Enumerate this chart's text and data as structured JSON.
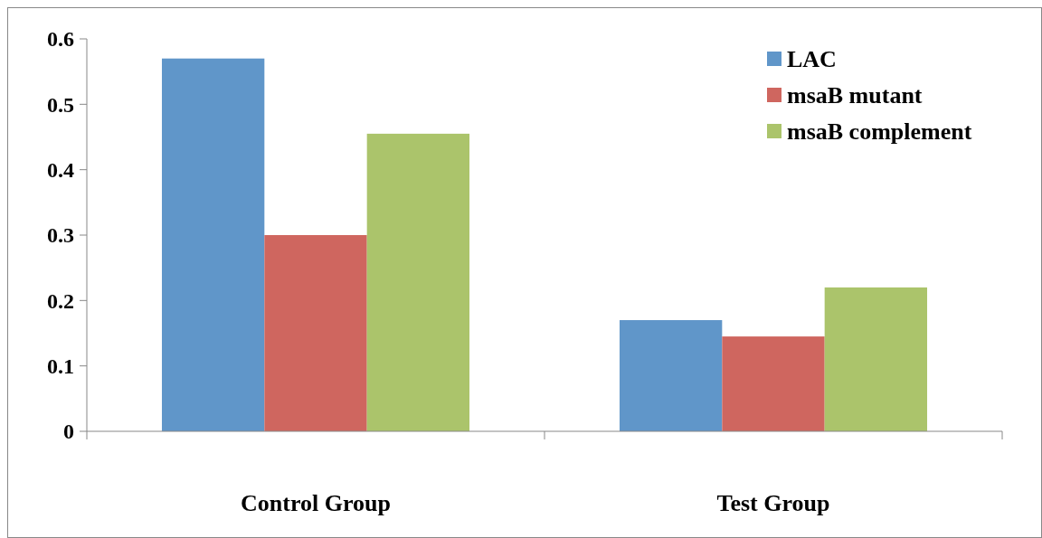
{
  "chart_data": {
    "type": "bar",
    "categories": [
      "Control Group",
      "Test Group"
    ],
    "series": [
      {
        "name": "LAC",
        "color": "#6096c9",
        "values": [
          0.57,
          0.17
        ]
      },
      {
        "name": "msaB mutant",
        "color": "#cf665f",
        "values": [
          0.3,
          0.145
        ]
      },
      {
        "name": "msaB complement",
        "color": "#abc46b",
        "values": [
          0.455,
          0.22
        ]
      }
    ],
    "ylim": [
      0,
      0.6
    ],
    "yticks": [
      {
        "value": 0,
        "label": "0"
      },
      0.1,
      0.2,
      0.3,
      0.4,
      0.5,
      0.6
    ],
    "grid": false,
    "legend": "top right"
  }
}
